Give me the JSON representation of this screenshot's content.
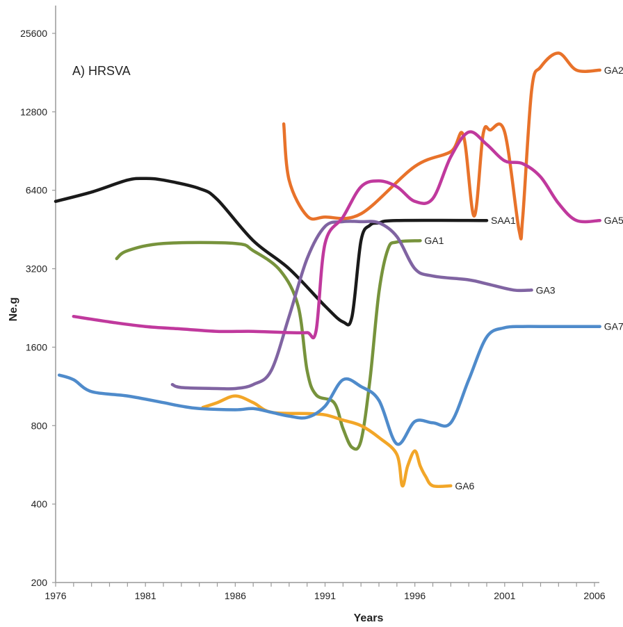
{
  "chart_data": {
    "type": "line",
    "title": "A) HRSVA",
    "xlabel": "Years",
    "ylabel": "Ne.g",
    "y_scale": "log2",
    "xlim": [
      1976,
      2006
    ],
    "ylim": [
      200,
      25600
    ],
    "x_ticks": [
      "1976",
      "1981",
      "1986",
      "1991",
      "1996",
      "2001",
      "2006"
    ],
    "y_ticks": [
      "200",
      "400",
      "800",
      "1600",
      "3200",
      "6400",
      "12800",
      "25600"
    ],
    "series": [
      {
        "name": "SAA1",
        "color": "#1a1a1a",
        "x": [
          1976,
          1978,
          1980,
          1981,
          1982,
          1984,
          1985,
          1987,
          1989,
          1991,
          1992,
          1992.5,
          1993,
          1993.5,
          1994,
          1995,
          2000
        ],
        "y": [
          5800,
          6300,
          7000,
          7100,
          7000,
          6500,
          5900,
          4100,
          3200,
          2300,
          2000,
          2100,
          4100,
          4700,
          4800,
          4900,
          4900
        ]
      },
      {
        "name": "GA1",
        "color": "#77933c",
        "x": [
          1979.4,
          1980,
          1982,
          1986,
          1987,
          1988.5,
          1989.5,
          1990,
          1990.5,
          1991.5,
          1992,
          1992.5,
          1993,
          1993.5,
          1994,
          1994.5,
          1995,
          1996.3
        ],
        "y": [
          3500,
          3750,
          4000,
          4000,
          3750,
          3150,
          2300,
          1300,
          1050,
          980,
          780,
          660,
          700,
          1200,
          2600,
          3800,
          4050,
          4100
        ]
      },
      {
        "name": "GA2",
        "color": "#e8722a",
        "x": [
          1988.7,
          1989,
          1990,
          1991,
          1993,
          1996,
          1998,
          1998.7,
          1999.3,
          1999.8,
          2000.2,
          2001,
          2001.8,
          2002,
          2002.5,
          2003,
          2004,
          2005,
          2006.3
        ],
        "y": [
          11500,
          7000,
          5100,
          5050,
          5200,
          7900,
          9000,
          10400,
          5100,
          10500,
          10900,
          10700,
          4500,
          5000,
          15500,
          19000,
          21500,
          18500,
          18500
        ]
      },
      {
        "name": "GA3",
        "color": "#8064a2",
        "x": [
          1982.5,
          1983,
          1985,
          1986,
          1987,
          1988,
          1989,
          1990,
          1991,
          1992,
          1993,
          1994,
          1995,
          1996,
          1997,
          1999,
          2000,
          2001.5,
          2002.5
        ],
        "y": [
          1150,
          1120,
          1110,
          1110,
          1150,
          1300,
          2100,
          3500,
          4650,
          4850,
          4850,
          4800,
          4250,
          3200,
          3000,
          2900,
          2800,
          2650,
          2650
        ]
      },
      {
        "name": "GA5",
        "color": "#c0399d",
        "x": [
          1977,
          1979,
          1981,
          1983,
          1985,
          1987,
          1989,
          1990,
          1990.5,
          1991,
          1992,
          1993,
          1994,
          1995,
          1996,
          1997,
          1998,
          1999,
          2000,
          2001,
          2002,
          2003,
          2004,
          2005,
          2006.3
        ],
        "y": [
          2100,
          2000,
          1920,
          1880,
          1840,
          1840,
          1820,
          1820,
          1850,
          4000,
          5050,
          6600,
          6950,
          6600,
          5800,
          5950,
          8600,
          10700,
          9600,
          8300,
          8100,
          7200,
          5700,
          4900,
          4900
        ]
      },
      {
        "name": "GA6",
        "color": "#f2a628",
        "x": [
          1984.2,
          1985,
          1986,
          1987,
          1988,
          1990,
          1991,
          1992,
          1993,
          1994,
          1995,
          1995.3,
          1995.6,
          1996,
          1996.3,
          1996.6,
          1997,
          1998
        ],
        "y": [
          940,
          980,
          1040,
          980,
          900,
          890,
          880,
          840,
          800,
          720,
          620,
          470,
          560,
          640,
          560,
          510,
          470,
          470
        ]
      },
      {
        "name": "GA7",
        "color": "#4f8bcb",
        "x": [
          1976.2,
          1977,
          1978,
          1980,
          1982,
          1983,
          1984,
          1986,
          1987,
          1988,
          1989,
          1990,
          1991,
          1992,
          1993,
          1994,
          1995,
          1996,
          1997,
          1998,
          1999,
          2000,
          2001,
          2002,
          2003,
          2006.3
        ],
        "y": [
          1250,
          1200,
          1080,
          1040,
          980,
          950,
          930,
          920,
          930,
          900,
          870,
          860,
          950,
          1200,
          1130,
          1000,
          680,
          830,
          820,
          820,
          1200,
          1750,
          1900,
          1920,
          1920,
          1920
        ]
      }
    ]
  }
}
